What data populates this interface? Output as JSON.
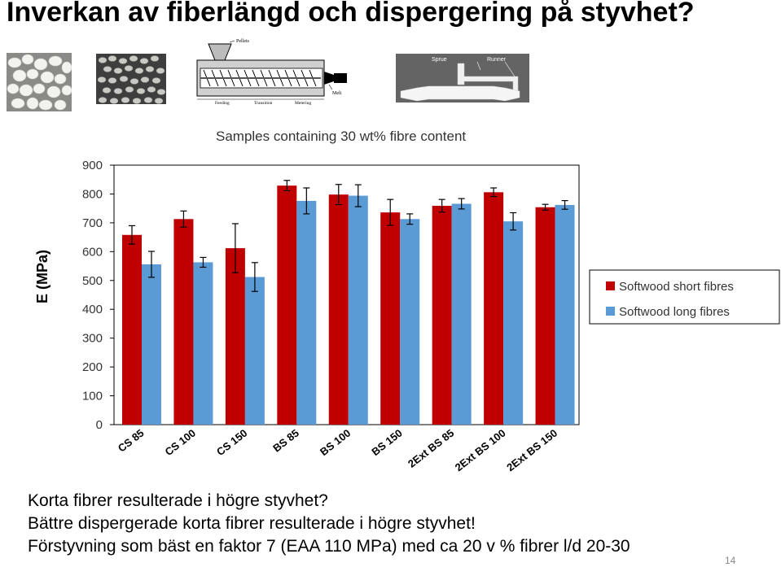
{
  "slide": {
    "title": "Inverkan av fiberlängd och dispergering på styvhet?",
    "page_number": "14",
    "bullets": [
      "Korta fibrer resulterade i högre styvhet?",
      "Bättre dispergerade korta fibrer resulterade i högre styvhet!",
      "Förstyvning som bäst en faktor 7 (EAA 110 MPa) med ca 20 v % fibrer l/d 20-30"
    ]
  },
  "diagram": {
    "pellets_label": "Pellets",
    "melt_label": "Melt",
    "zones": [
      "Feeding",
      "Transition",
      "Metering"
    ],
    "sprue_label": "Sprue",
    "runner_label": "Runner"
  },
  "chart_data": {
    "type": "bar",
    "title": "Samples containing 30 wt% fibre content",
    "ylabel": "E (MPa)",
    "xlabel": "",
    "ylim": [
      0,
      900
    ],
    "yticks": [
      0,
      100,
      200,
      300,
      400,
      500,
      600,
      700,
      800,
      900
    ],
    "grid": false,
    "legend_position": "right",
    "categories": [
      "CS 85",
      "CS 100",
      "CS 150",
      "BS 85",
      "BS 100",
      "BS 150",
      "2Ext BS 85",
      "2Ext BS 100",
      "2Ext BS 150"
    ],
    "series": [
      {
        "name": "Softwood short fibres",
        "color": "#C00000",
        "values": [
          658,
          713,
          612,
          829,
          798,
          736,
          759,
          806,
          754
        ],
        "errors": [
          32,
          28,
          85,
          18,
          35,
          45,
          22,
          15,
          10
        ]
      },
      {
        "name": "Softwood long fibres",
        "color": "#5B9BD5",
        "values": [
          556,
          563,
          512,
          776,
          794,
          713,
          766,
          705,
          762
        ],
        "errors": [
          45,
          17,
          50,
          45,
          38,
          18,
          18,
          30,
          15
        ]
      }
    ]
  }
}
